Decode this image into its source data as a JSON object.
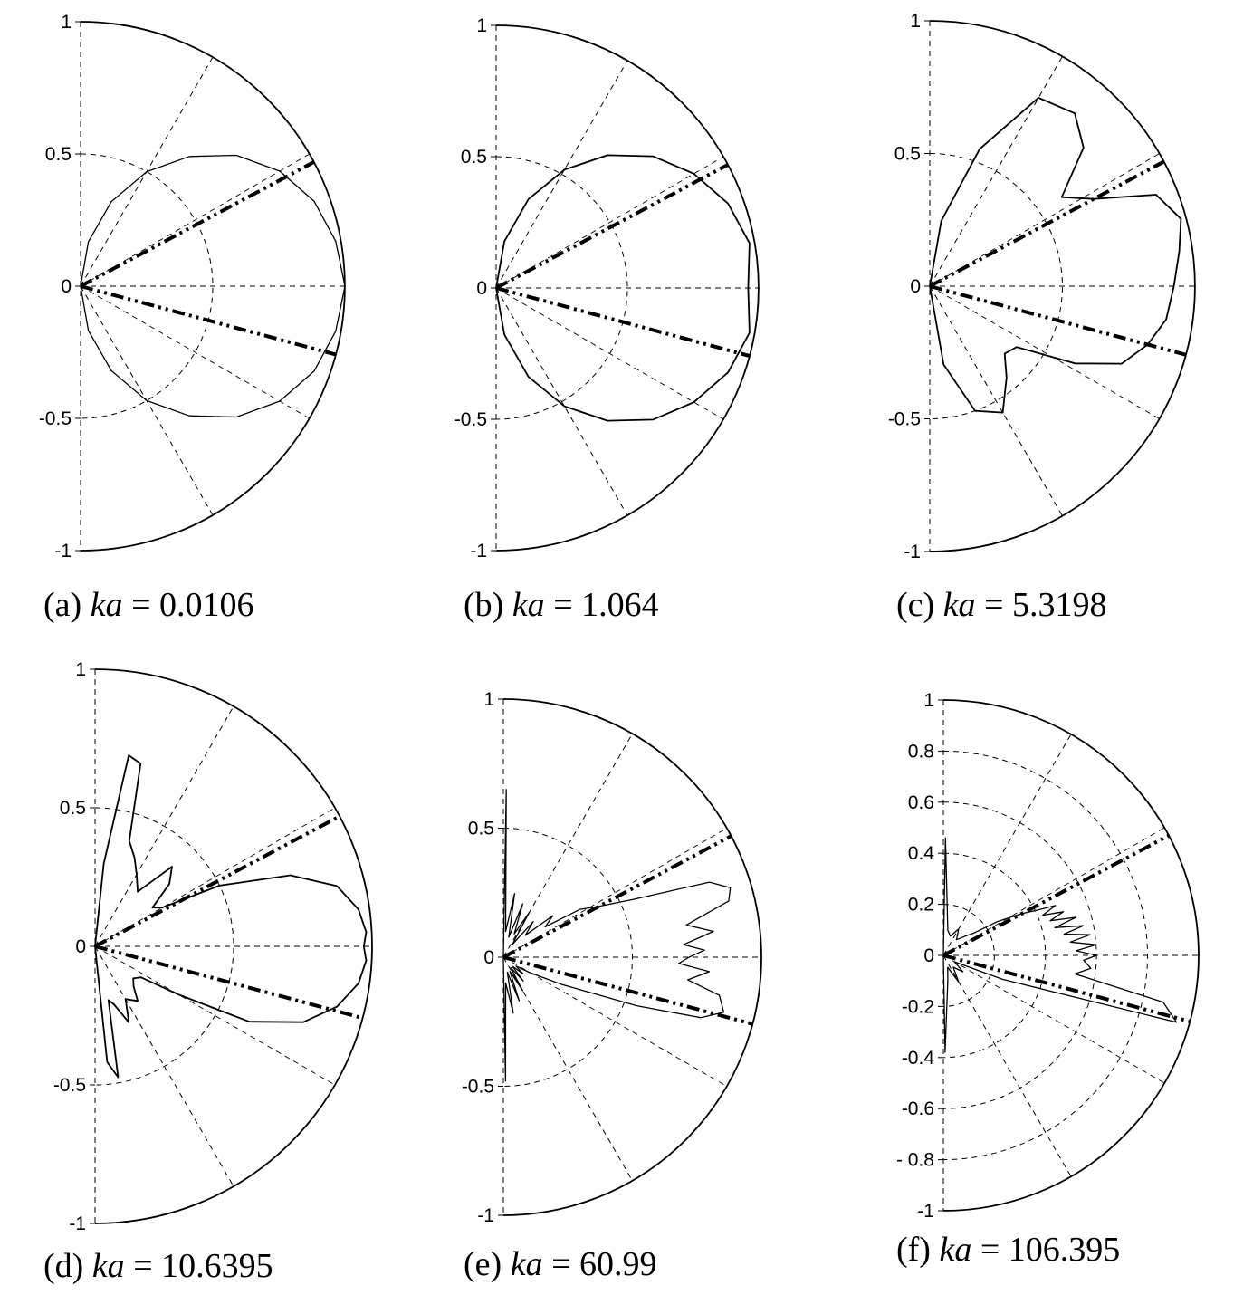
{
  "figure": {
    "background": "#ffffff",
    "line_color": "#000000"
  },
  "chart_data": [
    {
      "type": "line",
      "polar": "half-plane polar plot (right half, -90 to 90 degrees)",
      "caption": {
        "label": "(a)",
        "param": "ka",
        "eq": "=",
        "value": "0.0106"
      },
      "rlim": [
        0,
        1
      ],
      "y_ticks": [
        "1",
        "0.5",
        "0",
        "-0.5",
        "-1"
      ],
      "y_tick_values": [
        1,
        0.5,
        0,
        -0.5,
        -1
      ],
      "rings": [
        0.5
      ],
      "spokes_deg": [
        -60,
        -30,
        0,
        30,
        60
      ],
      "grid": true,
      "reference_lines_deg": [
        28,
        -15
      ],
      "series": [
        {
          "style": "thin solid",
          "theta_deg": [
            -90,
            -80,
            -70,
            -60,
            -50,
            -40,
            -30,
            -20,
            -10,
            0,
            10,
            20,
            30,
            40,
            50,
            60,
            70,
            80,
            90
          ],
          "r": [
            0,
            0.17,
            0.34,
            0.5,
            0.64,
            0.77,
            0.87,
            0.94,
            0.98,
            1.0,
            0.98,
            0.94,
            0.87,
            0.77,
            0.64,
            0.5,
            0.34,
            0.17,
            0
          ]
        },
        {
          "style": "outer boundary",
          "theta_deg": [
            90,
            60,
            30,
            0,
            -20,
            -40,
            -60,
            -80,
            -90
          ],
          "r": [
            1,
            1,
            1,
            1,
            1,
            1,
            1,
            1,
            1
          ]
        }
      ]
    },
    {
      "type": "line",
      "polar": "half-plane polar plot",
      "caption": {
        "label": "(b)",
        "param": "ka",
        "eq": "=",
        "value": "1.064"
      },
      "rlim": [
        0,
        1
      ],
      "y_ticks": [
        "1",
        "0.5",
        "0",
        "-0.5",
        "-1"
      ],
      "y_tick_values": [
        1,
        0.5,
        0,
        -0.5,
        -1
      ],
      "rings": [
        0.5
      ],
      "spokes_deg": [
        -60,
        -30,
        0,
        30,
        60
      ],
      "grid": true,
      "reference_lines_deg": [
        28,
        -15
      ],
      "series": [
        {
          "style": "medium solid",
          "theta_deg": [
            -90,
            -80,
            -70,
            -60,
            -50,
            -40,
            -30,
            -20,
            -10,
            0,
            10,
            20,
            30,
            40,
            50,
            60,
            70,
            80,
            90
          ],
          "r": [
            0,
            0.18,
            0.36,
            0.52,
            0.66,
            0.78,
            0.87,
            0.94,
            0.98,
            0.96,
            0.98,
            0.94,
            0.87,
            0.78,
            0.66,
            0.52,
            0.36,
            0.18,
            0
          ]
        }
      ]
    },
    {
      "type": "line",
      "polar": "half-plane polar plot",
      "caption": {
        "label": "(c)",
        "param": "ka",
        "eq": "=",
        "value": "5.3198"
      },
      "rlim": [
        0,
        1
      ],
      "y_ticks": [
        "1",
        "0.5",
        "0",
        "-0.5",
        "-1"
      ],
      "y_tick_values": [
        1,
        0.5,
        0,
        -0.5,
        -1
      ],
      "rings": [
        0.5
      ],
      "spokes_deg": [
        -60,
        -30,
        0,
        30,
        60
      ],
      "grid": true,
      "reference_lines_deg": [
        28,
        -15
      ],
      "series": [
        {
          "style": "medium solid",
          "theta_deg": [
            -90,
            -80,
            -70,
            -60,
            -50,
            -42,
            -35,
            -28,
            -22,
            -15,
            -8,
            0,
            8,
            15,
            22,
            28,
            34,
            42,
            50,
            60,
            70,
            80,
            90
          ],
          "r": [
            0,
            0.3,
            0.5,
            0.55,
            0.45,
            0.38,
            0.4,
            0.62,
            0.78,
            0.85,
            0.9,
            0.92,
            0.95,
            0.98,
            0.92,
            0.7,
            0.6,
            0.78,
            0.85,
            0.82,
            0.55,
            0.25,
            0
          ]
        }
      ]
    },
    {
      "type": "line",
      "polar": "half-plane polar plot",
      "caption": {
        "label": "(d)",
        "param": "ka",
        "eq": "=",
        "value": "10.6395"
      },
      "rlim": [
        0,
        1
      ],
      "y_ticks": [
        "1",
        "0.5",
        "0",
        "-0.5",
        "-1"
      ],
      "y_tick_values": [
        1,
        0.5,
        0,
        -0.5,
        -1
      ],
      "rings": [
        0.5
      ],
      "spokes_deg": [
        -60,
        -30,
        0,
        30,
        60
      ],
      "grid": true,
      "reference_lines_deg": [
        28,
        -15
      ],
      "series": [
        {
          "style": "medium solid",
          "theta_deg": [
            -90,
            -84,
            -80,
            -76,
            -72,
            -66,
            -60,
            -52,
            -46,
            -40,
            -34,
            -30,
            -26,
            -20,
            -14,
            -8,
            -3,
            0,
            3,
            8,
            14,
            20,
            26,
            30,
            34,
            40,
            46,
            52,
            60,
            66,
            72,
            76,
            80,
            84,
            90
          ],
          "r": [
            0,
            0.42,
            0.48,
            0.2,
            0.22,
            0.3,
            0.22,
            0.25,
            0.2,
            0.18,
            0.2,
            0.35,
            0.62,
            0.8,
            0.9,
            0.96,
            0.98,
            0.97,
            0.98,
            0.96,
            0.9,
            0.75,
            0.5,
            0.28,
            0.25,
            0.35,
            0.4,
            0.25,
            0.3,
            0.35,
            0.4,
            0.68,
            0.7,
            0.3,
            0
          ]
        }
      ]
    },
    {
      "type": "line",
      "polar": "half-plane polar plot",
      "caption": {
        "label": "(e)",
        "param": "ka",
        "eq": "=",
        "value": "60.99"
      },
      "rlim": [
        0,
        1
      ],
      "y_ticks": [
        "1",
        "0.5",
        "0",
        "-0.5",
        "-1"
      ],
      "y_tick_values": [
        1,
        0.5,
        0,
        -0.5,
        -1
      ],
      "rings": [
        0.5
      ],
      "spokes_deg": [
        -60,
        -30,
        0,
        30,
        60
      ],
      "grid": true,
      "reference_lines_deg": [
        28,
        -15
      ],
      "series": [
        {
          "style": "thin solid",
          "theta_deg": [
            -89,
            -85,
            -80,
            -75,
            -70,
            -65,
            -60,
            -55,
            -50,
            -45,
            -40,
            -35,
            -30,
            -25,
            -20,
            -17,
            -14,
            -10,
            -7,
            -4,
            -2,
            0,
            2,
            4,
            7,
            10,
            14,
            17,
            20,
            24,
            28,
            32,
            36,
            40,
            45,
            50,
            55,
            60,
            65,
            70,
            75,
            80,
            85,
            89
          ],
          "r": [
            0.48,
            0.1,
            0.22,
            0.06,
            0.18,
            0.06,
            0.15,
            0.05,
            0.12,
            0.05,
            0.1,
            0.06,
            0.12,
            0.25,
            0.55,
            0.8,
            0.88,
            0.85,
            0.72,
            0.8,
            0.68,
            0.72,
            0.78,
            0.7,
            0.82,
            0.72,
            0.9,
            0.92,
            0.85,
            0.55,
            0.42,
            0.35,
            0.2,
            0.25,
            0.12,
            0.18,
            0.06,
            0.2,
            0.1,
            0.22,
            0.08,
            0.25,
            0.1,
            0.65
          ]
        }
      ]
    },
    {
      "type": "line",
      "polar": "half-plane polar plot",
      "caption": {
        "label": "(f)",
        "param": "ka",
        "eq": "=",
        "value": "106.395"
      },
      "rlim": [
        0,
        1
      ],
      "y_ticks": [
        "1",
        "0.8",
        "0.6",
        "0.4",
        "0.2",
        "0",
        "-0.2",
        "-0.4",
        "-0.6",
        "- 0.8",
        "-1"
      ],
      "y_tick_values": [
        1,
        0.8,
        0.6,
        0.4,
        0.2,
        0,
        -0.2,
        -0.4,
        -0.6,
        -0.8,
        -1
      ],
      "rings": [
        0.2,
        0.4,
        0.6,
        0.8
      ],
      "spokes_deg": [
        -60,
        -30,
        0,
        30,
        60
      ],
      "grid": true,
      "reference_lines_deg": [
        28,
        -15
      ],
      "series": [
        {
          "style": "thin solid",
          "theta_deg": [
            -89,
            -80,
            -70,
            -60,
            -50,
            -40,
            -30,
            -22,
            -16,
            -12,
            -8,
            -5,
            -2,
            0,
            2,
            4,
            6,
            8,
            10,
            12,
            14,
            16,
            18,
            20,
            22,
            24,
            26,
            28,
            32,
            36,
            40,
            50,
            60,
            70,
            80,
            89
          ],
          "r": [
            0.38,
            0.1,
            0.05,
            0.12,
            0.06,
            0.1,
            0.05,
            0.25,
            0.95,
            0.88,
            0.52,
            0.58,
            0.55,
            0.6,
            0.52,
            0.6,
            0.5,
            0.58,
            0.48,
            0.56,
            0.45,
            0.54,
            0.44,
            0.5,
            0.42,
            0.48,
            0.4,
            0.35,
            0.25,
            0.15,
            0.12,
            0.08,
            0.12,
            0.08,
            0.1,
            0.46
          ]
        }
      ]
    }
  ]
}
